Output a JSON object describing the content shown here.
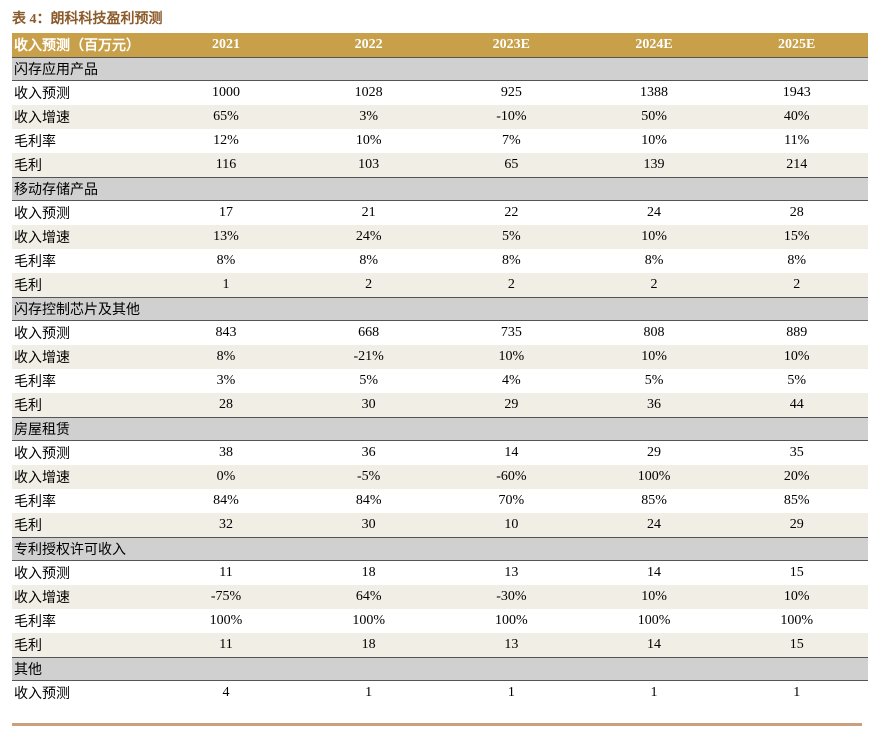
{
  "header": {
    "title": "表 4：朗科科技盈利预测"
  },
  "table": {
    "columns": [
      "收入预测（百万元）",
      "2021",
      "2022",
      "2023E",
      "2024E",
      "2025E"
    ],
    "sections": [
      {
        "name": "闪存应用产品",
        "rows": [
          [
            "收入预测",
            "1000",
            "1028",
            "925",
            "1388",
            "1943"
          ],
          [
            "收入增速",
            "65%",
            "3%",
            "-10%",
            "50%",
            "40%"
          ],
          [
            "毛利率",
            "12%",
            "10%",
            "7%",
            "10%",
            "11%"
          ],
          [
            "毛利",
            "116",
            "103",
            "65",
            "139",
            "214"
          ]
        ]
      },
      {
        "name": "移动存储产品",
        "rows": [
          [
            "收入预测",
            "17",
            "21",
            "22",
            "24",
            "28"
          ],
          [
            "收入增速",
            "13%",
            "24%",
            "5%",
            "10%",
            "15%"
          ],
          [
            "毛利率",
            "8%",
            "8%",
            "8%",
            "8%",
            "8%"
          ],
          [
            "毛利",
            "1",
            "2",
            "2",
            "2",
            "2"
          ]
        ]
      },
      {
        "name": "闪存控制芯片及其他",
        "rows": [
          [
            "收入预测",
            "843",
            "668",
            "735",
            "808",
            "889"
          ],
          [
            "收入增速",
            "8%",
            "-21%",
            "10%",
            "10%",
            "10%"
          ],
          [
            "毛利率",
            "3%",
            "5%",
            "4%",
            "5%",
            "5%"
          ],
          [
            "毛利",
            "28",
            "30",
            "29",
            "36",
            "44"
          ]
        ]
      },
      {
        "name": "房屋租赁",
        "rows": [
          [
            "收入预测",
            "38",
            "36",
            "14",
            "29",
            "35"
          ],
          [
            "收入增速",
            "0%",
            "-5%",
            "-60%",
            "100%",
            "20%"
          ],
          [
            "毛利率",
            "84%",
            "84%",
            "70%",
            "85%",
            "85%"
          ],
          [
            "毛利",
            "32",
            "30",
            "10",
            "24",
            "29"
          ]
        ]
      },
      {
        "name": "专利授权许可收入",
        "rows": [
          [
            "收入预测",
            "11",
            "18",
            "13",
            "14",
            "15"
          ],
          [
            "收入增速",
            "-75%",
            "64%",
            "-30%",
            "10%",
            "10%"
          ],
          [
            "毛利率",
            "100%",
            "100%",
            "100%",
            "100%",
            "100%"
          ],
          [
            "毛利",
            "11",
            "18",
            "13",
            "14",
            "15"
          ]
        ]
      },
      {
        "name": "其他",
        "rows": [
          [
            "收入预测",
            "4",
            "1",
            "1",
            "1",
            "1"
          ]
        ]
      }
    ]
  }
}
